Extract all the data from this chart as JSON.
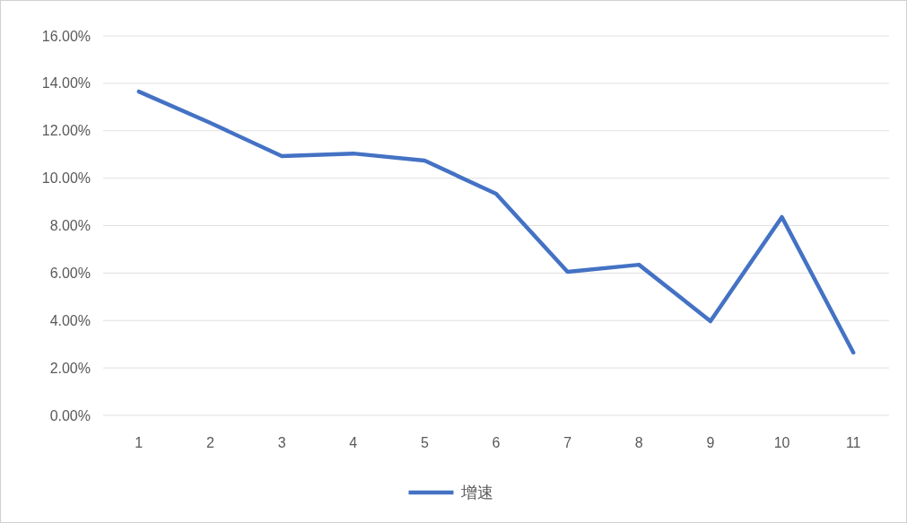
{
  "chart_data": {
    "type": "line",
    "categories": [
      "1",
      "2",
      "3",
      "4",
      "5",
      "6",
      "7",
      "8",
      "9",
      "10",
      "11"
    ],
    "series": [
      {
        "name": "增速",
        "color": "#4472c4",
        "values": [
          13.65,
          12.33,
          10.93,
          11.04,
          10.74,
          9.34,
          6.05,
          6.35,
          3.97,
          8.36,
          2.65
        ]
      }
    ],
    "ylim": [
      0,
      16
    ],
    "yticks": [
      {
        "value": 0,
        "label": "0.00%"
      },
      {
        "value": 2,
        "label": "2.00%"
      },
      {
        "value": 4,
        "label": "4.00%"
      },
      {
        "value": 6,
        "label": "6.00%"
      },
      {
        "value": 8,
        "label": "8.00%"
      },
      {
        "value": 10,
        "label": "10.00%"
      },
      {
        "value": 12,
        "label": "12.00%"
      },
      {
        "value": 14,
        "label": "14.00%"
      },
      {
        "value": 16,
        "label": "16.00%"
      }
    ],
    "grid": "y",
    "legend": "bottom",
    "marker": "none",
    "line_style": "solid"
  }
}
